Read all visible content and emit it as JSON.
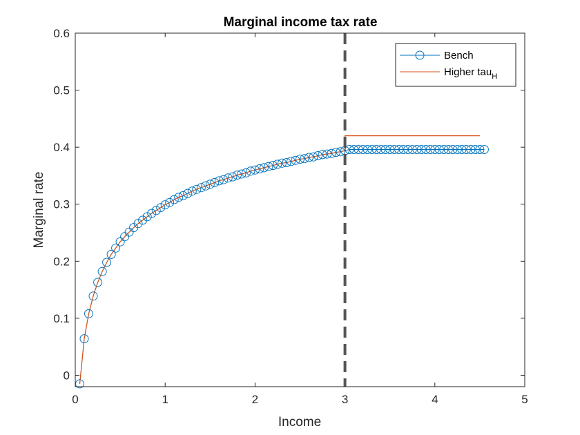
{
  "chart_data": {
    "type": "line",
    "title": "Marginal income tax rate",
    "xlabel": "Income",
    "ylabel": "Marginal rate",
    "xlim": [
      0,
      5
    ],
    "ylim": [
      -0.02,
      0.6
    ],
    "xticks": [
      "0",
      "1",
      "2",
      "3",
      "4",
      "5"
    ],
    "yticks": [
      "0",
      "0.1",
      "0.2",
      "0.3",
      "0.4",
      "0.5",
      "0.6"
    ],
    "grid": false,
    "legend_position": "top-right",
    "legend": {
      "bench": "Bench",
      "higher_prefix": "Higher tau",
      "higher_subscript": "H"
    },
    "threshold_x": 3.0,
    "colors": {
      "bench": "#0072BD",
      "higher": "#D95319",
      "threshold": "#555555",
      "axes": "#262626"
    },
    "series": [
      {
        "name": "Bench",
        "marker": "circle",
        "x": [
          0.05,
          0.1,
          0.15,
          0.2,
          0.25,
          0.3,
          0.35,
          0.4,
          0.45,
          0.5,
          0.55,
          0.6,
          0.65,
          0.7,
          0.75,
          0.8,
          0.85,
          0.9,
          0.95,
          1.0,
          1.05,
          1.1,
          1.15,
          1.2,
          1.25,
          1.3,
          1.35,
          1.4,
          1.45,
          1.5,
          1.55,
          1.6,
          1.65,
          1.7,
          1.75,
          1.8,
          1.85,
          1.9,
          1.95,
          2.0,
          2.05,
          2.1,
          2.15,
          2.2,
          2.25,
          2.3,
          2.35,
          2.4,
          2.45,
          2.5,
          2.55,
          2.6,
          2.65,
          2.7,
          2.75,
          2.8,
          2.85,
          2.9,
          2.95,
          3.0,
          3.05,
          3.1,
          3.15,
          3.2,
          3.25,
          3.3,
          3.35,
          3.4,
          3.45,
          3.5,
          3.55,
          3.6,
          3.65,
          3.7,
          3.75,
          3.8,
          3.85,
          3.9,
          3.95,
          4.0,
          4.05,
          4.1,
          4.15,
          4.2,
          4.25,
          4.3,
          4.35,
          4.4,
          4.45,
          4.5,
          4.55
        ],
        "y": [
          -0.015,
          0.064,
          0.108,
          0.139,
          0.163,
          0.182,
          0.198,
          0.212,
          0.223,
          0.234,
          0.243,
          0.251,
          0.259,
          0.266,
          0.272,
          0.278,
          0.284,
          0.289,
          0.294,
          0.299,
          0.303,
          0.308,
          0.312,
          0.315,
          0.319,
          0.323,
          0.326,
          0.329,
          0.332,
          0.335,
          0.338,
          0.341,
          0.343,
          0.346,
          0.348,
          0.351,
          0.353,
          0.355,
          0.358,
          0.36,
          0.362,
          0.364,
          0.366,
          0.368,
          0.37,
          0.372,
          0.373,
          0.375,
          0.377,
          0.379,
          0.38,
          0.382,
          0.383,
          0.385,
          0.387,
          0.388,
          0.389,
          0.391,
          0.392,
          0.394,
          0.396,
          0.396,
          0.396,
          0.396,
          0.396,
          0.396,
          0.396,
          0.396,
          0.396,
          0.396,
          0.396,
          0.396,
          0.396,
          0.396,
          0.396,
          0.396,
          0.396,
          0.396,
          0.396,
          0.396,
          0.396,
          0.396,
          0.396,
          0.396,
          0.396,
          0.396,
          0.396,
          0.396,
          0.396,
          0.396,
          0.396
        ]
      },
      {
        "name": "Higher tau_H",
        "marker": "none",
        "x": [
          0.05,
          0.1,
          0.15,
          0.2,
          0.25,
          0.3,
          0.35,
          0.4,
          0.45,
          0.5,
          0.55,
          0.6,
          0.65,
          0.7,
          0.75,
          0.8,
          0.85,
          0.9,
          0.95,
          1.0,
          1.05,
          1.1,
          1.15,
          1.2,
          1.25,
          1.3,
          1.35,
          1.4,
          1.45,
          1.5,
          1.55,
          1.6,
          1.65,
          1.7,
          1.75,
          1.8,
          1.85,
          1.9,
          1.95,
          2.0,
          2.05,
          2.1,
          2.15,
          2.2,
          2.25,
          2.3,
          2.35,
          2.4,
          2.45,
          2.5,
          2.55,
          2.6,
          2.65,
          2.7,
          2.75,
          2.8,
          2.85,
          2.9,
          2.95,
          3.0,
          3.0,
          3.05,
          3.1,
          3.15,
          3.2,
          3.25,
          3.3,
          3.35,
          3.4,
          3.45,
          3.5,
          3.55,
          3.6,
          3.65,
          3.7,
          3.75,
          3.8,
          3.85,
          3.9,
          3.95,
          4.0,
          4.05,
          4.1,
          4.15,
          4.2,
          4.25,
          4.3,
          4.35,
          4.4,
          4.45,
          4.5
        ],
        "y": [
          -0.015,
          0.064,
          0.108,
          0.139,
          0.163,
          0.182,
          0.198,
          0.212,
          0.223,
          0.234,
          0.243,
          0.251,
          0.259,
          0.266,
          0.272,
          0.278,
          0.284,
          0.289,
          0.294,
          0.299,
          0.303,
          0.308,
          0.312,
          0.315,
          0.319,
          0.323,
          0.326,
          0.329,
          0.332,
          0.335,
          0.338,
          0.341,
          0.343,
          0.346,
          0.348,
          0.351,
          0.353,
          0.355,
          0.358,
          0.36,
          0.362,
          0.364,
          0.366,
          0.368,
          0.37,
          0.372,
          0.373,
          0.375,
          0.377,
          0.379,
          0.38,
          0.382,
          0.383,
          0.385,
          0.387,
          0.388,
          0.389,
          0.391,
          0.392,
          0.394,
          0.42,
          0.42,
          0.42,
          0.42,
          0.42,
          0.42,
          0.42,
          0.42,
          0.42,
          0.42,
          0.42,
          0.42,
          0.42,
          0.42,
          0.42,
          0.42,
          0.42,
          0.42,
          0.42,
          0.42,
          0.42,
          0.42,
          0.42,
          0.42,
          0.42,
          0.42,
          0.42,
          0.42,
          0.42,
          0.42,
          0.42
        ]
      }
    ]
  }
}
